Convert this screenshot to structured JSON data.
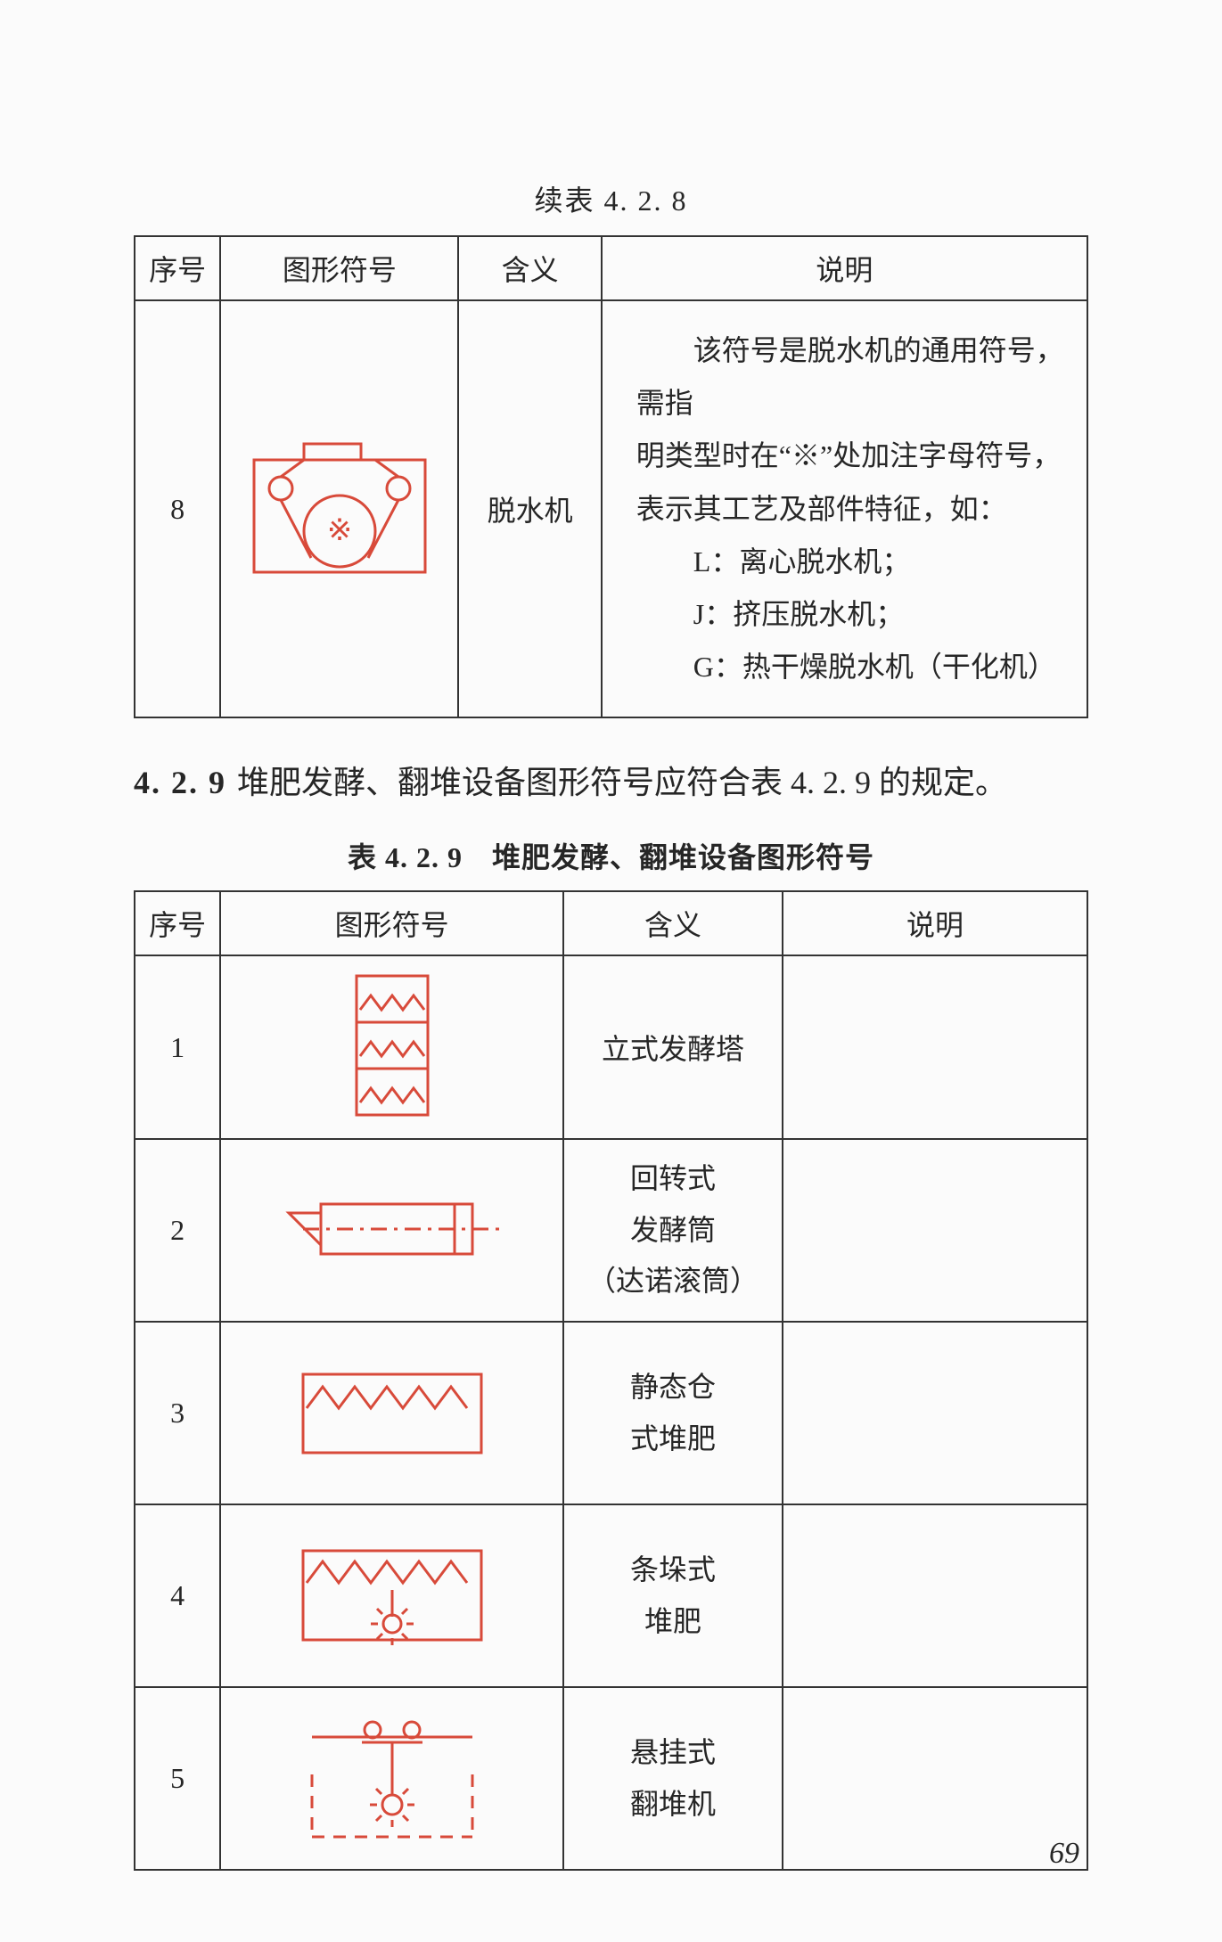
{
  "colors": {
    "symbol": "#d84a3a",
    "border": "#333333",
    "text": "#262626",
    "bg": "#fbfbfb"
  },
  "lineWidth": 3,
  "table1": {
    "caption": "续表 4. 2. 8",
    "headers": [
      "序号",
      "图形符号",
      "含义",
      "说明"
    ],
    "row": {
      "idx": "8",
      "meaning": "脱水机",
      "desc_lines": [
        "该符号是脱水机的通用符号，需指",
        "明类型时在“※”处加注字母符号，",
        "表示其工艺及部件特征，如：",
        "L：离心脱水机；",
        "J：挤压脱水机；",
        "G：热干燥脱水机（干化机）"
      ]
    }
  },
  "section": {
    "num": "4. 2. 9",
    "text": "堆肥发酵、翻堆设备图形符号应符合表 4. 2. 9 的规定。"
  },
  "table2": {
    "title": "表 4. 2. 9　堆肥发酵、翻堆设备图形符号",
    "headers": [
      "序号",
      "图形符号",
      "含义",
      "说明"
    ],
    "rows": [
      {
        "idx": "1",
        "meaning": "立式发酵塔",
        "desc": ""
      },
      {
        "idx": "2",
        "meaning": "回转式\n发酵筒\n（达诺滚筒）",
        "desc": ""
      },
      {
        "idx": "3",
        "meaning": "静态仓\n式堆肥",
        "desc": ""
      },
      {
        "idx": "4",
        "meaning": "条垛式\n堆肥",
        "desc": ""
      },
      {
        "idx": "5",
        "meaning": "悬挂式\n翻堆机",
        "desc": ""
      }
    ]
  },
  "pageNumber": "69"
}
